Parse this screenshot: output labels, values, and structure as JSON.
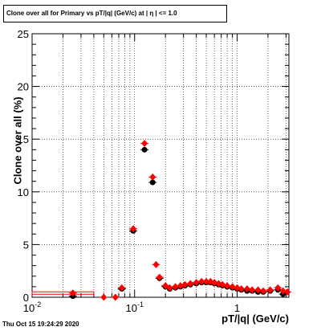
{
  "chart_data": {
    "type": "scatter",
    "title": "Clone  over all for Primary vs pT/|q| (GeV/c) at |  η | <= 1.0",
    "xlabel": "pT/|q| (GeV/c)",
    "ylabel": "Clone  over all (%)",
    "x_scale": "log",
    "xlim": [
      0.01,
      3.2
    ],
    "ylim": [
      0,
      25
    ],
    "grid": true,
    "x_ticks": [
      {
        "value": 0.01,
        "label": "10",
        "exp": "-2"
      },
      {
        "value": 0.1,
        "label": "10",
        "exp": "-1"
      },
      {
        "value": 1,
        "label": "1",
        "exp": ""
      }
    ],
    "y_ticks": [
      {
        "value": 0,
        "label": "0"
      },
      {
        "value": 5,
        "label": "5"
      },
      {
        "value": 10,
        "label": "10"
      },
      {
        "value": 15,
        "label": "15"
      },
      {
        "value": 20,
        "label": "20"
      },
      {
        "value": 25,
        "label": "25"
      }
    ],
    "series": [
      {
        "color": "#000000",
        "marker": "circle",
        "points": [
          {
            "x": 0.025,
            "y": 0.1
          },
          {
            "x": 0.075,
            "y": 0.8
          },
          {
            "x": 0.097,
            "y": 6.3
          },
          {
            "x": 0.125,
            "y": 14.0
          },
          {
            "x": 0.15,
            "y": 10.9
          },
          {
            "x": 0.175,
            "y": 1.8
          },
          {
            "x": 0.2,
            "y": 1.0
          },
          {
            "x": 0.22,
            "y": 0.8
          },
          {
            "x": 0.25,
            "y": 0.9
          },
          {
            "x": 0.28,
            "y": 1.0
          },
          {
            "x": 0.31,
            "y": 1.1
          },
          {
            "x": 0.35,
            "y": 1.2
          },
          {
            "x": 0.4,
            "y": 1.3
          },
          {
            "x": 0.45,
            "y": 1.4
          },
          {
            "x": 0.5,
            "y": 1.4
          },
          {
            "x": 0.55,
            "y": 1.4
          },
          {
            "x": 0.6,
            "y": 1.3
          },
          {
            "x": 0.66,
            "y": 1.2
          },
          {
            "x": 0.72,
            "y": 1.1
          },
          {
            "x": 0.8,
            "y": 1.0
          },
          {
            "x": 0.9,
            "y": 0.9
          },
          {
            "x": 1.0,
            "y": 0.8
          },
          {
            "x": 1.1,
            "y": 0.7
          },
          {
            "x": 1.25,
            "y": 0.6
          },
          {
            "x": 1.4,
            "y": 0.6
          },
          {
            "x": 1.6,
            "y": 0.5
          },
          {
            "x": 1.8,
            "y": 0.5
          },
          {
            "x": 2.1,
            "y": 0.6
          },
          {
            "x": 2.5,
            "y": 0.7
          },
          {
            "x": 2.8,
            "y": 0.3
          }
        ]
      },
      {
        "color": "#ff0000",
        "marker": "diamond",
        "points": [
          {
            "x": 0.025,
            "y": 0.4
          },
          {
            "x": 0.05,
            "y": 0.0
          },
          {
            "x": 0.065,
            "y": 0.0
          },
          {
            "x": 0.075,
            "y": 0.9
          },
          {
            "x": 0.097,
            "y": 6.5
          },
          {
            "x": 0.125,
            "y": 14.6
          },
          {
            "x": 0.15,
            "y": 11.4
          },
          {
            "x": 0.162,
            "y": 3.1
          },
          {
            "x": 0.175,
            "y": 1.9
          },
          {
            "x": 0.2,
            "y": 1.1
          },
          {
            "x": 0.22,
            "y": 0.9
          },
          {
            "x": 0.25,
            "y": 1.0
          },
          {
            "x": 0.28,
            "y": 1.1
          },
          {
            "x": 0.31,
            "y": 1.2
          },
          {
            "x": 0.35,
            "y": 1.3
          },
          {
            "x": 0.4,
            "y": 1.4
          },
          {
            "x": 0.45,
            "y": 1.5
          },
          {
            "x": 0.5,
            "y": 1.5
          },
          {
            "x": 0.55,
            "y": 1.5
          },
          {
            "x": 0.6,
            "y": 1.4
          },
          {
            "x": 0.66,
            "y": 1.3
          },
          {
            "x": 0.72,
            "y": 1.2
          },
          {
            "x": 0.8,
            "y": 1.1
          },
          {
            "x": 0.9,
            "y": 1.0
          },
          {
            "x": 1.0,
            "y": 0.9
          },
          {
            "x": 1.1,
            "y": 0.8
          },
          {
            "x": 1.25,
            "y": 0.8
          },
          {
            "x": 1.4,
            "y": 0.7
          },
          {
            "x": 1.6,
            "y": 0.7
          },
          {
            "x": 1.8,
            "y": 0.6
          },
          {
            "x": 2.1,
            "y": 0.7
          },
          {
            "x": 2.5,
            "y": 0.9
          },
          {
            "x": 2.8,
            "y": 0.6
          },
          {
            "x": 3.1,
            "y": 0.5
          }
        ]
      }
    ]
  },
  "footer": {
    "datestamp": "Thu Oct 15 19:24:29 2020"
  }
}
